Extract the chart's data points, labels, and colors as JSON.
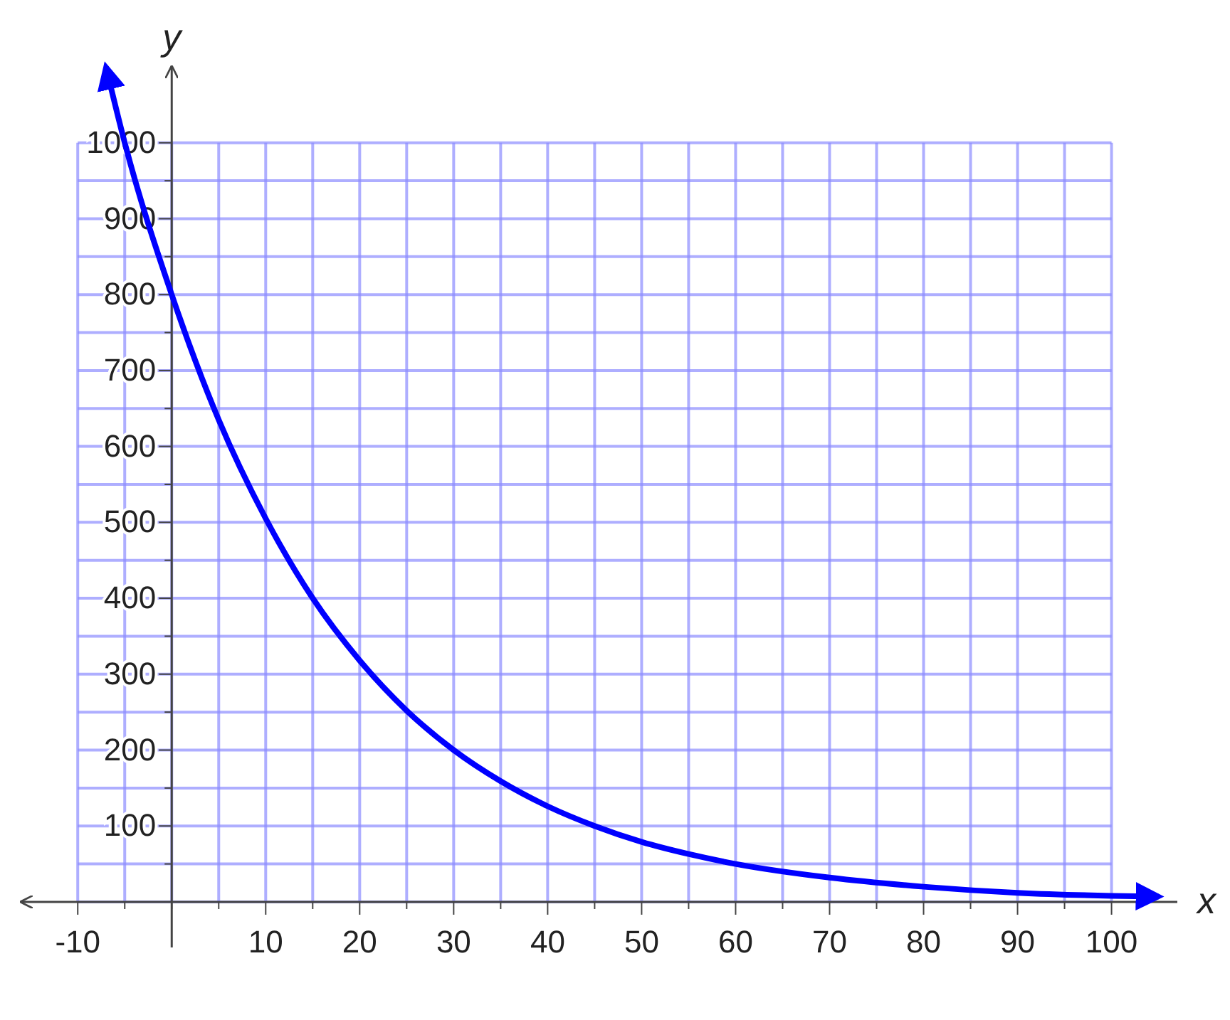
{
  "chart_data": {
    "type": "line",
    "xlabel": "x",
    "ylabel": "y",
    "xlim": [
      -16,
      107
    ],
    "ylim": [
      -60,
      1100
    ],
    "xticks": [
      -10,
      {
        "value": -5,
        "label": null
      },
      {
        "value": 0,
        "label": null
      },
      {
        "value": 5,
        "label": null
      },
      10,
      {
        "value": 15,
        "label": null
      },
      20,
      {
        "value": 25,
        "label": null
      },
      30,
      {
        "value": 35,
        "label": null
      },
      40,
      {
        "value": 45,
        "label": null
      },
      50,
      {
        "value": 55,
        "label": null
      },
      60,
      {
        "value": 65,
        "label": null
      },
      70,
      {
        "value": 75,
        "label": null
      },
      80,
      {
        "value": 85,
        "label": null
      },
      90,
      {
        "value": 95,
        "label": null
      },
      100
    ],
    "yticks": [
      {
        "value": 0,
        "label": null
      },
      {
        "value": 50,
        "label": null
      },
      100,
      {
        "value": 150,
        "label": null
      },
      200,
      {
        "value": 250,
        "label": null
      },
      300,
      {
        "value": 350,
        "label": null
      },
      400,
      {
        "value": 450,
        "label": null
      },
      500,
      {
        "value": 550,
        "label": null
      },
      600,
      {
        "value": 650,
        "label": null
      },
      700,
      {
        "value": 750,
        "label": null
      },
      800,
      {
        "value": 850,
        "label": null
      },
      900,
      {
        "value": 950,
        "label": null
      },
      1000
    ],
    "grid": true,
    "marker": "none",
    "line_style": "solid",
    "series": [
      {
        "color": "#0000ff",
        "x": [
          -7,
          -5,
          0,
          5,
          10,
          15,
          20,
          25,
          30,
          35,
          40,
          45,
          50,
          55,
          60,
          70,
          80,
          90,
          100,
          105
        ],
        "values": [
          1100,
          1000,
          800,
          635,
          505,
          400,
          318,
          252,
          200,
          159,
          126,
          100,
          79,
          63,
          50,
          32,
          20,
          12,
          8,
          7
        ]
      }
    ]
  }
}
